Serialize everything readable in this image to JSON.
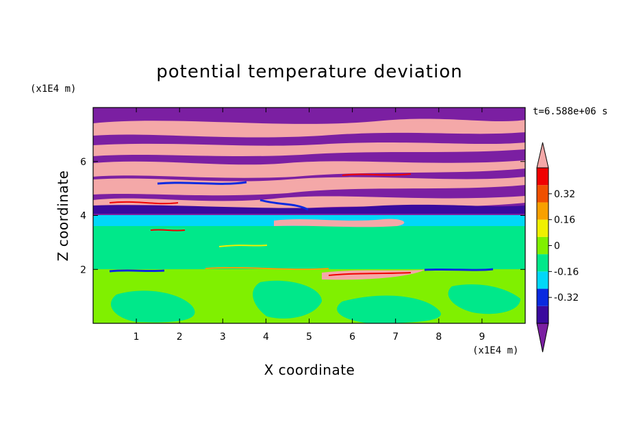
{
  "chart_data": {
    "type": "heatmap",
    "title": "potential temperature deviation",
    "xlabel": "X coordinate",
    "ylabel": "Z coordinate",
    "x_unit": "(x1E4 m)",
    "y_unit": "(x1E4 m)",
    "time_label": "t=6.588e+06 s",
    "xlim": [
      0,
      10
    ],
    "ylim": [
      0,
      8
    ],
    "x_ticks": [
      "1",
      "2",
      "3",
      "4",
      "5",
      "6",
      "7",
      "8",
      "9"
    ],
    "y_ticks": [
      "2",
      "4",
      "6"
    ],
    "colorbar": {
      "levels": [
        -0.48,
        -0.4,
        -0.32,
        -0.24,
        -0.16,
        -0.08,
        0,
        0.08,
        0.16,
        0.24,
        0.32,
        0.4,
        0.48
      ],
      "labels": [
        "0.32",
        "0.16",
        "0",
        "-0.16",
        "-0.32"
      ],
      "colors": [
        "#7b1fa2",
        "#3a0a9e",
        "#0a2ae0",
        "#00d8f8",
        "#00e88a",
        "#80f000",
        "#f0f000",
        "#f8a000",
        "#f05000",
        "#f00000",
        "#f4a8a8"
      ],
      "extend": "both"
    },
    "regions": [
      {
        "z_range": [
          4.1,
          8.0
        ],
        "pattern": "alternating layers of about -0.45 and +0.45 (purple and pink bands)"
      },
      {
        "z_range": [
          3.7,
          4.1
        ],
        "value": -0.1
      },
      {
        "z_range": [
          2.0,
          3.7
        ],
        "value": -0.05
      },
      {
        "z_range": [
          0.0,
          2.0
        ],
        "value": 0.04
      }
    ]
  }
}
